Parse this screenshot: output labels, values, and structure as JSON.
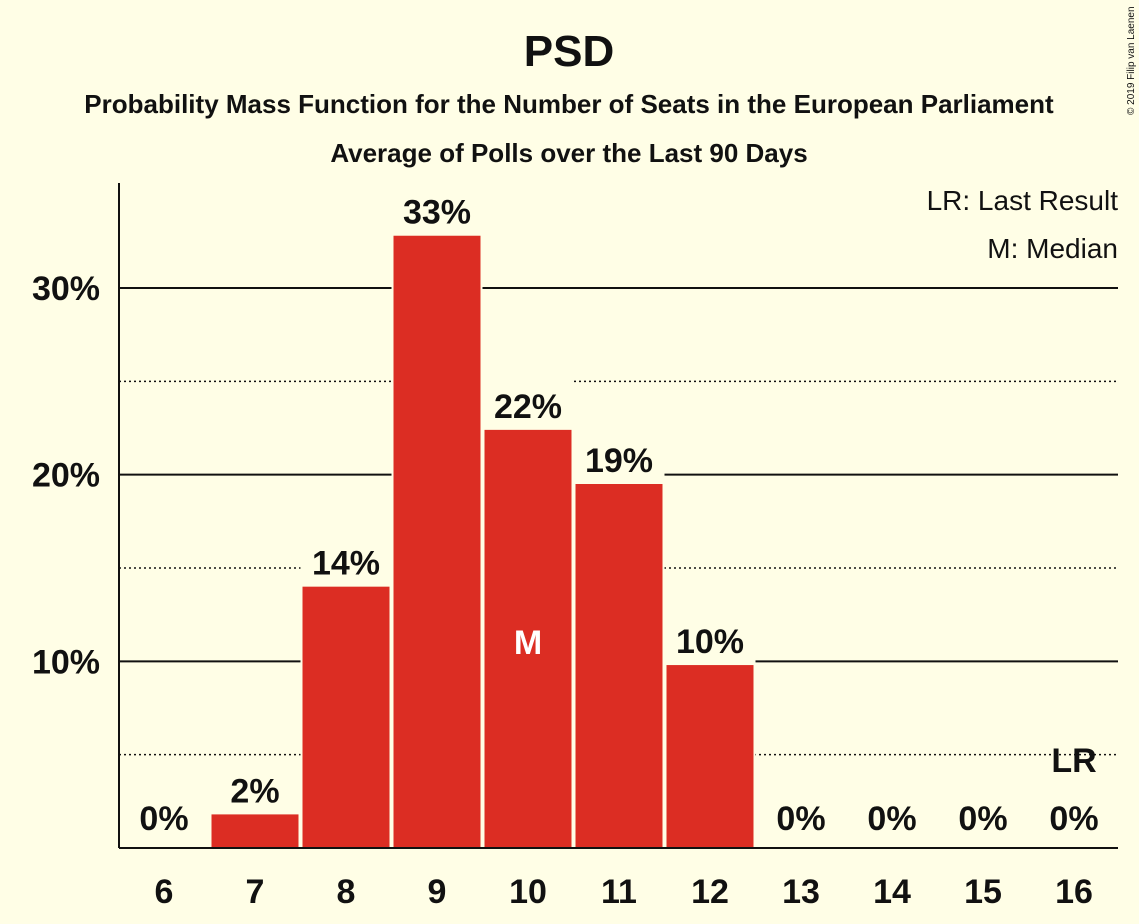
{
  "chart_data": {
    "type": "bar",
    "title": "PSD",
    "subtitle": "Probability Mass Function for the Number of Seats in the European Parliament",
    "subtitle2": "Average of Polls over the Last 90 Days",
    "categories": [
      "6",
      "7",
      "8",
      "9",
      "10",
      "11",
      "12",
      "13",
      "14",
      "15",
      "16"
    ],
    "values": [
      0,
      1.8,
      14.0,
      32.8,
      22.4,
      19.5,
      9.8,
      0,
      0,
      0,
      0
    ],
    "data_labels": [
      "0%",
      "2%",
      "14%",
      "33%",
      "22%",
      "19%",
      "10%",
      "0%",
      "0%",
      "0%",
      "0%"
    ],
    "yticks": [
      10,
      20,
      30
    ],
    "ytick_labels": [
      "10%",
      "20%",
      "30%"
    ],
    "minor_grid": [
      5,
      15,
      25
    ],
    "ylim": [
      0,
      35.5
    ],
    "median_category": "10",
    "median_label": "M",
    "last_result_category": "16",
    "last_result_label": "LR",
    "legend": [
      "LR: Last Result",
      "M: Median"
    ],
    "legend_position": "top-right",
    "bar_color": "#DC2D23",
    "background_color": "#FFFEE6",
    "copyright": "© 2019 Filip van Laenen"
  }
}
